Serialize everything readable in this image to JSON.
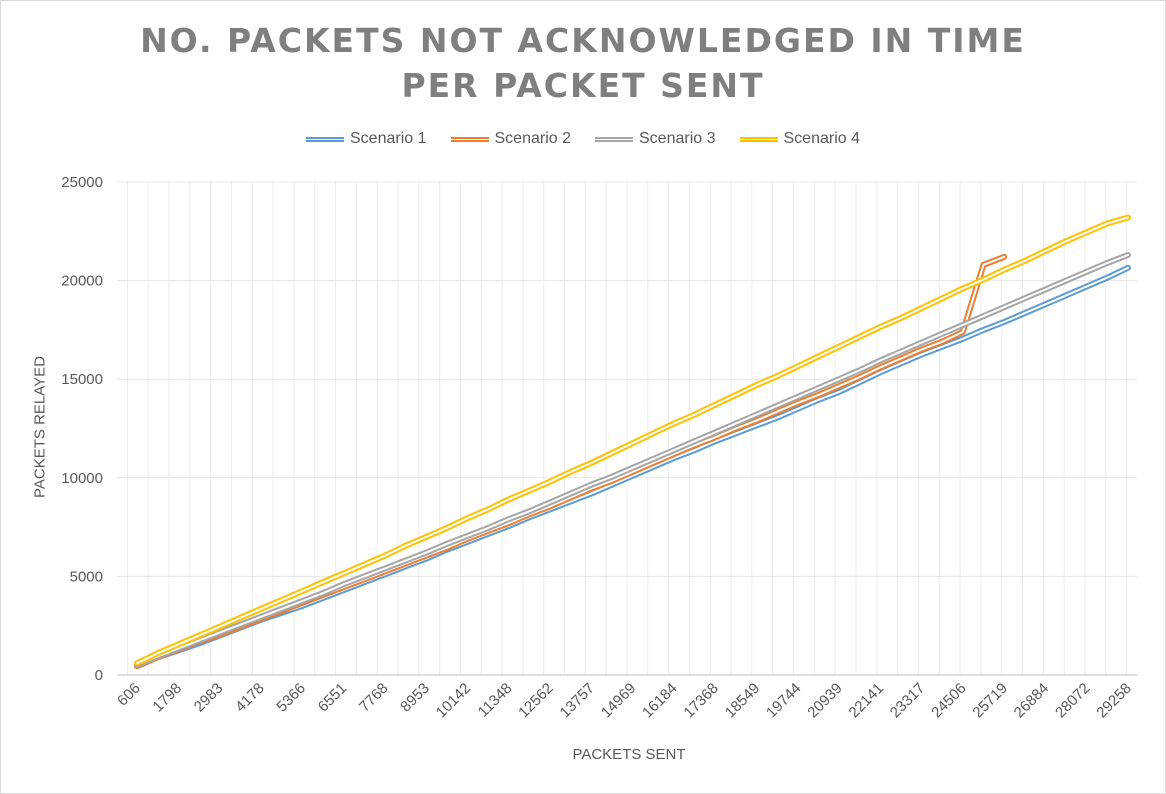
{
  "chart_data": {
    "type": "line",
    "title_lines": [
      "NO. PACKETS NOT ACKNOWLEDGED IN TIME",
      "PER PACKET SENT"
    ],
    "xlabel": "PACKETS SENT",
    "ylabel": "PACKETS RELAYED",
    "ylim": [
      0,
      25000
    ],
    "yticks": [
      "0",
      "5000",
      "10000",
      "15000",
      "20000",
      "25000"
    ],
    "x_tick_labels": [
      "606",
      "1798",
      "2983",
      "4178",
      "5366",
      "6551",
      "7768",
      "8953",
      "10142",
      "11348",
      "12562",
      "13757",
      "14969",
      "16184",
      "17368",
      "18549",
      "19744",
      "20939",
      "22141",
      "23317",
      "24506",
      "25719",
      "26884",
      "28072",
      "29258"
    ],
    "x": [
      606,
      1202,
      1798,
      2391,
      2983,
      3581,
      4178,
      4772,
      5366,
      5959,
      6551,
      7160,
      7768,
      8361,
      8953,
      9548,
      10142,
      10745,
      11348,
      11955,
      12562,
      13160,
      13757,
      14363,
      14969,
      15577,
      16184,
      16776,
      17368,
      17959,
      18549,
      19147,
      19744,
      20342,
      20939,
      21540,
      22141,
      22729,
      23317,
      23912,
      24506,
      25113,
      25719,
      26302,
      26884,
      27478,
      28072,
      28665,
      29258
    ],
    "grid": true,
    "legend_position": "top",
    "series": [
      {
        "name": "Scenario 1",
        "color": "#5b9bd5",
        "values": [
          450,
          900,
          1250,
          1600,
          2000,
          2400,
          2800,
          3150,
          3500,
          3900,
          4300,
          4700,
          5100,
          5500,
          5900,
          6350,
          6750,
          7150,
          7550,
          8000,
          8400,
          8800,
          9200,
          9650,
          10100,
          10550,
          11000,
          11400,
          11850,
          12250,
          12650,
          13050,
          13500,
          13950,
          14350,
          14850,
          15350,
          15800,
          16250,
          16650,
          17050,
          17500,
          17900,
          18350,
          18800,
          19250,
          19700,
          20150,
          20650
        ]
      },
      {
        "name": "Scenario 2",
        "color": "#ed7d31",
        "values": [
          450,
          900,
          1300,
          1700,
          2050,
          2450,
          2850,
          3250,
          3650,
          4050,
          4450,
          4850,
          5250,
          5650,
          6050,
          6450,
          6900,
          7300,
          7700,
          8150,
          8550,
          9000,
          9450,
          9850,
          10300,
          10750,
          11200,
          11650,
          12050,
          12500,
          12900,
          13350,
          13800,
          14200,
          14650,
          15100,
          15600,
          16050,
          16500,
          16900,
          17400,
          20800,
          21200,
          null,
          null,
          null,
          null,
          null,
          null
        ]
      },
      {
        "name": "Scenario 3",
        "color": "#a5a5a5",
        "values": [
          500,
          950,
          1350,
          1750,
          2150,
          2550,
          2950,
          3350,
          3750,
          4150,
          4600,
          5000,
          5400,
          5800,
          6200,
          6650,
          7050,
          7450,
          7900,
          8300,
          8750,
          9200,
          9650,
          10050,
          10500,
          10950,
          11400,
          11850,
          12300,
          12750,
          13200,
          13650,
          14100,
          14550,
          15000,
          15450,
          15950,
          16400,
          16850,
          17300,
          17750,
          18200,
          18650,
          19100,
          19550,
          20000,
          20450,
          20900,
          21300
        ]
      },
      {
        "name": "Scenario 4",
        "color": "#ffc000",
        "values": [
          600,
          1100,
          1550,
          2000,
          2450,
          2900,
          3350,
          3800,
          4250,
          4700,
          5150,
          5600,
          6050,
          6550,
          7000,
          7450,
          7950,
          8400,
          8900,
          9350,
          9800,
          10300,
          10750,
          11250,
          11750,
          12250,
          12750,
          13200,
          13700,
          14200,
          14700,
          15150,
          15650,
          16150,
          16650,
          17150,
          17650,
          18100,
          18600,
          19100,
          19600,
          20050,
          20550,
          21000,
          21500,
          22000,
          22450,
          22900,
          23200
        ]
      }
    ]
  }
}
